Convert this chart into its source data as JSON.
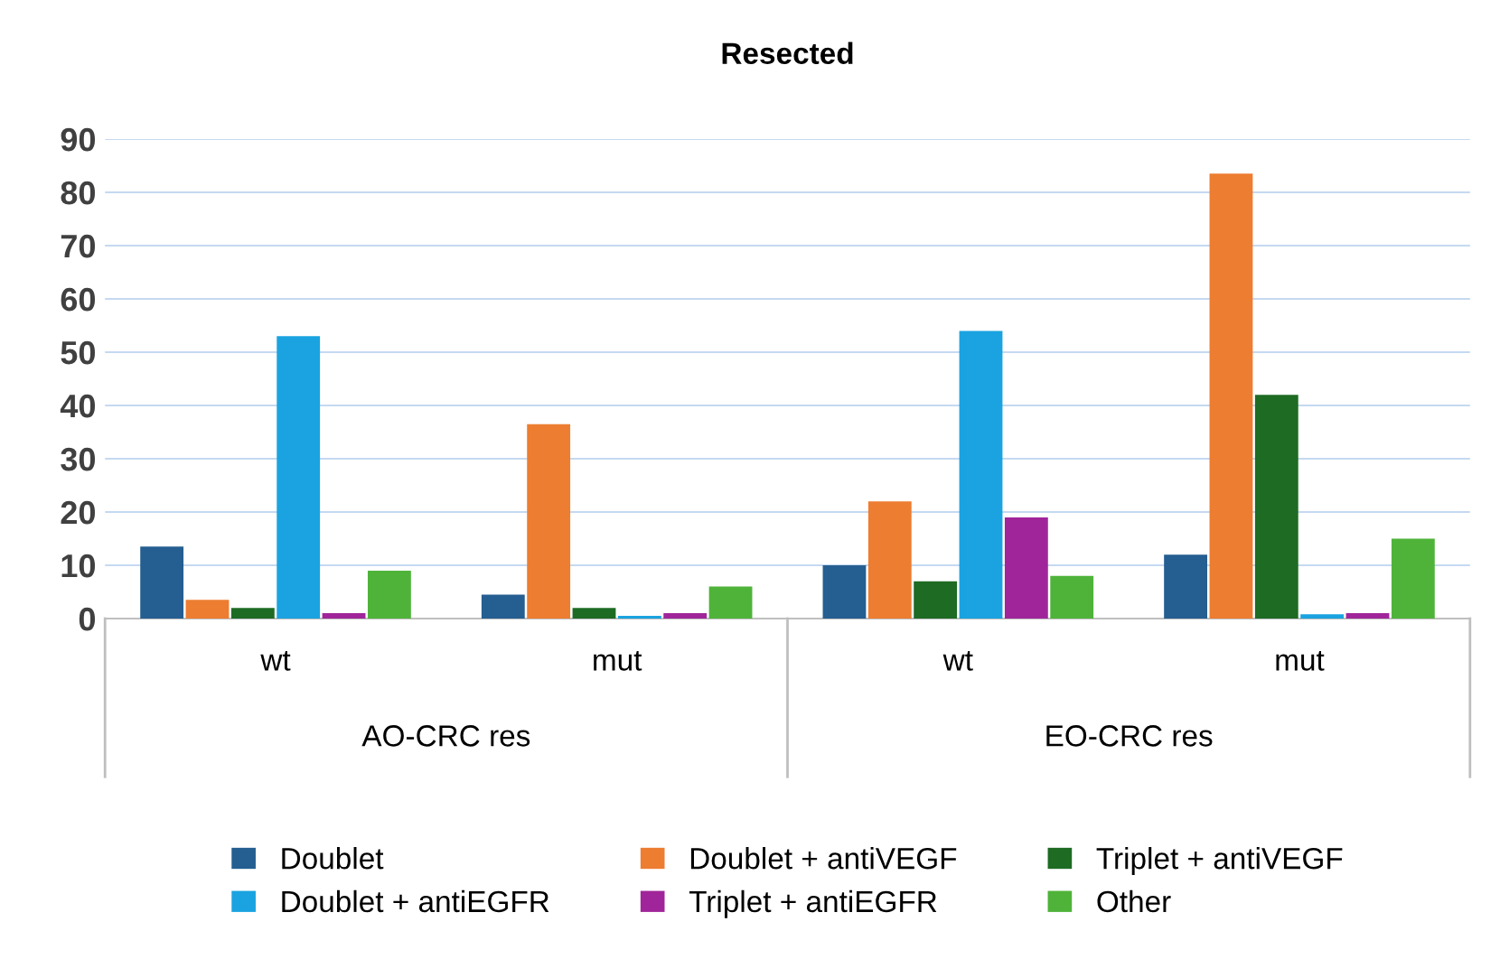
{
  "chart_data": {
    "type": "bar",
    "title": "Resected",
    "categories": [
      "wt",
      "mut",
      "wt",
      "mut"
    ],
    "series": [
      {
        "name": "Doublet",
        "color": "#255e91",
        "values": [
          13.5,
          4.5,
          10,
          12
        ]
      },
      {
        "name": "Doublet + antiVEGF",
        "color": "#ed7d31",
        "values": [
          3.5,
          36.5,
          22,
          83.5
        ]
      },
      {
        "name": "Triplet + antiVEGF",
        "color": "#1e6b24",
        "values": [
          2,
          2,
          7,
          42
        ]
      },
      {
        "name": "Doublet + antiEGFR",
        "color": "#1aa3e0",
        "values": [
          53,
          0.5,
          54,
          0.8
        ]
      },
      {
        "name": "Triplet + antiEGFR",
        "color": "#a0259a",
        "values": [
          1,
          1,
          19,
          1
        ]
      },
      {
        "name": "Other",
        "color": "#4fb33a",
        "values": [
          9,
          6,
          8,
          15
        ]
      }
    ],
    "annotations": [
      "AO-CRC res",
      "EO-CRC res"
    ],
    "ylim": [
      0,
      90
    ],
    "yticks": [
      0,
      10,
      20,
      30,
      40,
      50,
      60,
      70,
      80,
      90
    ],
    "grid": "y",
    "legend": "bottom"
  }
}
